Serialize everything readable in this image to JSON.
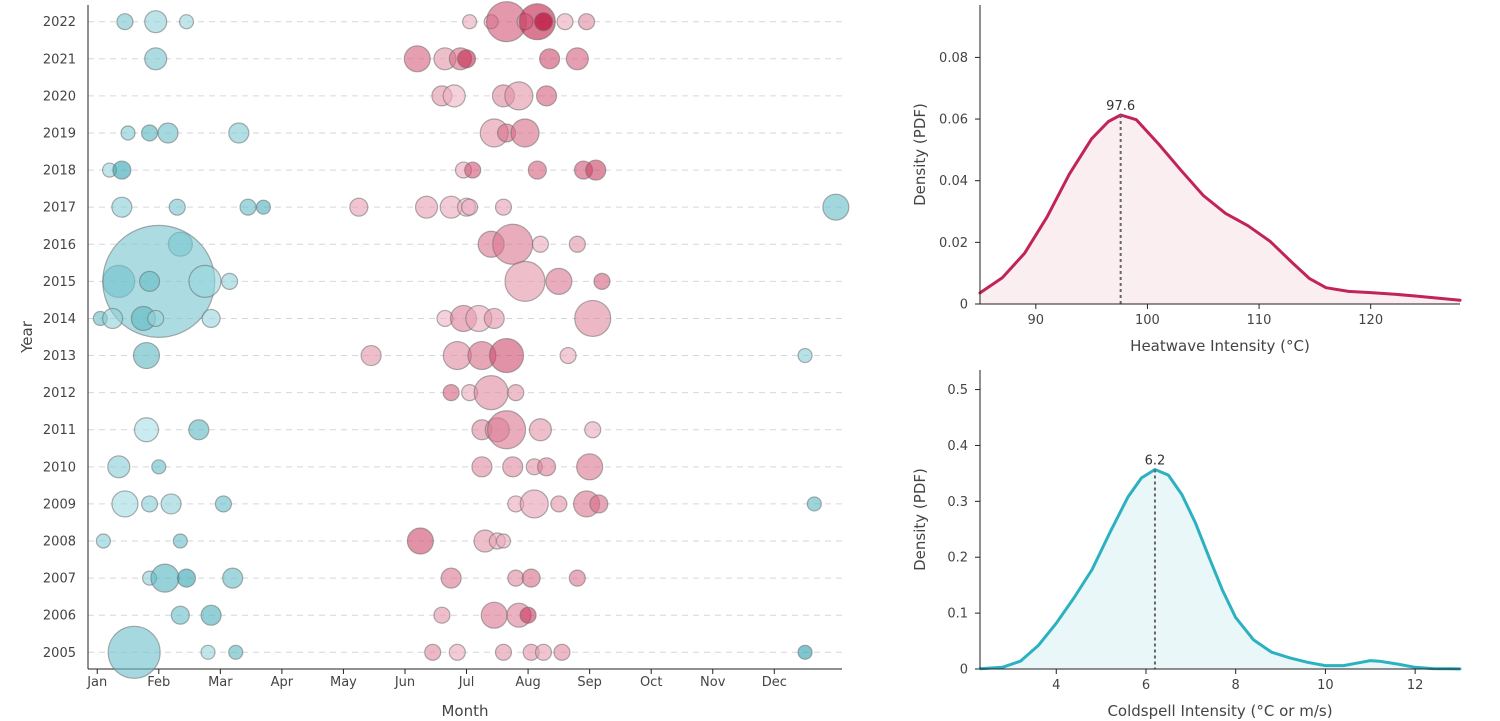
{
  "colors": {
    "heat_min": "#f5d3dd",
    "heat_max": "#b8002f",
    "cold_min": "#c9eff3",
    "cold_max": "#1f9aa8",
    "heat_line": "#c0245a",
    "cold_line": "#2bb1c0",
    "heat_fill": "#fbeef1",
    "cold_fill": "#eaf7f8"
  },
  "chart_data": [
    {
      "type": "scatter",
      "xlabel": "Month",
      "ylabel": "Year",
      "x_ticks": [
        "Jan",
        "Feb",
        "Mar",
        "Apr",
        "May",
        "Jun",
        "Jul",
        "Aug",
        "Sep",
        "Oct",
        "Nov",
        "Dec"
      ],
      "y_ticks": [
        "2005",
        "2006",
        "2007",
        "2008",
        "2009",
        "2010",
        "2011",
        "2012",
        "2013",
        "2014",
        "2015",
        "2016",
        "2017",
        "2018",
        "2019",
        "2020",
        "2021",
        "2022"
      ],
      "xlim": [
        0.85,
        13.1
      ],
      "ylim": [
        2004.55,
        2022.45
      ],
      "grid": "horizontal dashed",
      "series": [
        {
          "kind": "heatwave",
          "points": [
            [
              2022,
              7.05,
              7,
              0.2
            ],
            [
              2022,
              7.4,
              7,
              0.2
            ],
            [
              2022,
              7.65,
              20,
              0.6
            ],
            [
              2022,
              7.95,
              8,
              0.2
            ],
            [
              2022,
              8.15,
              18,
              0.85
            ],
            [
              2022,
              8.25,
              9,
              1.0
            ],
            [
              2022,
              8.6,
              8,
              0.2
            ],
            [
              2022,
              8.95,
              8,
              0.35
            ],
            [
              2021,
              6.2,
              13,
              0.55
            ],
            [
              2021,
              6.65,
              11,
              0.3
            ],
            [
              2021,
              6.9,
              11,
              0.5
            ],
            [
              2021,
              7.0,
              9,
              0.8
            ],
            [
              2021,
              8.35,
              10,
              0.65
            ],
            [
              2021,
              8.8,
              11,
              0.55
            ],
            [
              2020,
              6.6,
              10,
              0.3
            ],
            [
              2020,
              6.8,
              11,
              0.15
            ],
            [
              2020,
              7.6,
              11,
              0.35
            ],
            [
              2020,
              7.85,
              14,
              0.3
            ],
            [
              2020,
              8.3,
              10,
              0.55
            ],
            [
              2019,
              7.45,
              14,
              0.3
            ],
            [
              2019,
              7.65,
              9,
              0.5
            ],
            [
              2019,
              7.95,
              14,
              0.5
            ],
            [
              2018,
              6.95,
              8,
              0.2
            ],
            [
              2018,
              7.1,
              8,
              0.6
            ],
            [
              2018,
              8.15,
              9,
              0.55
            ],
            [
              2018,
              8.9,
              9,
              0.6
            ],
            [
              2018,
              9.1,
              10,
              0.7
            ],
            [
              2017,
              5.25,
              9,
              0.25
            ],
            [
              2017,
              6.35,
              11,
              0.25
            ],
            [
              2017,
              6.75,
              11,
              0.2
            ],
            [
              2017,
              7.0,
              9,
              0.15
            ],
            [
              2017,
              7.05,
              8,
              0.2
            ],
            [
              2017,
              7.6,
              8,
              0.25
            ],
            [
              2016,
              7.4,
              13,
              0.45
            ],
            [
              2016,
              7.75,
              20,
              0.45
            ],
            [
              2016,
              8.2,
              8,
              0.2
            ],
            [
              2016,
              8.8,
              8,
              0.3
            ],
            [
              2015,
              7.95,
              20,
              0.3
            ],
            [
              2015,
              8.5,
              13,
              0.45
            ],
            [
              2015,
              9.2,
              8,
              0.55
            ],
            [
              2014,
              6.65,
              8,
              0.15
            ],
            [
              2014,
              6.95,
              13,
              0.4
            ],
            [
              2014,
              7.2,
              13,
              0.2
            ],
            [
              2014,
              7.45,
              10,
              0.3
            ],
            [
              2014,
              9.05,
              18,
              0.35
            ],
            [
              2013,
              5.45,
              10,
              0.3
            ],
            [
              2013,
              6.85,
              14,
              0.35
            ],
            [
              2013,
              7.25,
              14,
              0.5
            ],
            [
              2013,
              7.65,
              17,
              0.65
            ],
            [
              2013,
              8.65,
              8,
              0.2
            ],
            [
              2012,
              6.75,
              8,
              0.55
            ],
            [
              2012,
              7.05,
              8,
              0.2
            ],
            [
              2012,
              7.4,
              17,
              0.35
            ],
            [
              2012,
              7.8,
              8,
              0.3
            ],
            [
              2011,
              7.25,
              10,
              0.35
            ],
            [
              2011,
              7.5,
              12,
              0.3
            ],
            [
              2011,
              7.65,
              19,
              0.45
            ],
            [
              2011,
              8.2,
              11,
              0.3
            ],
            [
              2011,
              9.05,
              8,
              0.2
            ],
            [
              2010,
              7.25,
              10,
              0.35
            ],
            [
              2010,
              7.75,
              10,
              0.35
            ],
            [
              2010,
              8.1,
              8,
              0.3
            ],
            [
              2010,
              8.3,
              9,
              0.4
            ],
            [
              2010,
              9.0,
              13,
              0.45
            ],
            [
              2009,
              7.8,
              8,
              0.2
            ],
            [
              2009,
              8.1,
              14,
              0.25
            ],
            [
              2009,
              8.5,
              8,
              0.3
            ],
            [
              2009,
              8.95,
              13,
              0.45
            ],
            [
              2009,
              9.15,
              9,
              0.5
            ],
            [
              2008,
              6.25,
              13,
              0.65
            ],
            [
              2008,
              7.3,
              11,
              0.3
            ],
            [
              2008,
              7.5,
              8,
              0.2
            ],
            [
              2008,
              7.6,
              7,
              0.2
            ],
            [
              2007,
              6.75,
              10,
              0.45
            ],
            [
              2007,
              7.8,
              8,
              0.35
            ],
            [
              2007,
              8.05,
              9,
              0.5
            ],
            [
              2007,
              8.8,
              8,
              0.45
            ],
            [
              2006,
              6.6,
              8,
              0.3
            ],
            [
              2006,
              7.45,
              13,
              0.45
            ],
            [
              2006,
              7.85,
              12,
              0.4
            ],
            [
              2006,
              8.0,
              8,
              0.75
            ],
            [
              2005,
              6.45,
              8,
              0.35
            ],
            [
              2005,
              6.85,
              8,
              0.2
            ],
            [
              2005,
              7.6,
              8,
              0.3
            ],
            [
              2005,
              8.05,
              8,
              0.3
            ],
            [
              2005,
              8.25,
              8,
              0.25
            ],
            [
              2005,
              8.55,
              8,
              0.35
            ]
          ]
        },
        {
          "kind": "coldspell",
          "points": [
            [
              2022,
              1.45,
              8,
              0.5
            ],
            [
              2022,
              1.95,
              11,
              0.35
            ],
            [
              2022,
              2.45,
              7,
              0.3
            ],
            [
              2021,
              1.95,
              11,
              0.5
            ],
            [
              2019,
              1.5,
              7,
              0.45
            ],
            [
              2019,
              1.85,
              8,
              0.7
            ],
            [
              2019,
              2.15,
              10,
              0.55
            ],
            [
              2019,
              3.3,
              10,
              0.45
            ],
            [
              2018,
              1.2,
              7,
              0.3
            ],
            [
              2018,
              1.4,
              9,
              0.9
            ],
            [
              2017,
              1.4,
              10,
              0.4
            ],
            [
              2017,
              2.3,
              8,
              0.5
            ],
            [
              2017,
              3.45,
              8,
              0.6
            ],
            [
              2017,
              3.7,
              7,
              0.75
            ],
            [
              2017,
              13.0,
              13,
              0.6
            ],
            [
              2016,
              2.35,
              12,
              0.45
            ],
            [
              2015,
              1.35,
              16,
              0.55
            ],
            [
              2015,
              2.0,
              56,
              0.5
            ],
            [
              2015,
              1.85,
              10,
              0.6
            ],
            [
              2015,
              2.75,
              16,
              0.3
            ],
            [
              2015,
              3.15,
              8,
              0.35
            ],
            [
              2014,
              1.05,
              7,
              0.6
            ],
            [
              2014,
              1.25,
              10,
              0.35
            ],
            [
              2014,
              1.75,
              12,
              0.65
            ],
            [
              2014,
              1.95,
              8,
              0.3
            ],
            [
              2014,
              2.85,
              9,
              0.3
            ],
            [
              2013,
              1.8,
              13,
              0.65
            ],
            [
              2013,
              12.5,
              7,
              0.4
            ],
            [
              2011,
              1.8,
              12,
              0.2
            ],
            [
              2011,
              2.65,
              10,
              0.65
            ],
            [
              2010,
              1.35,
              11,
              0.4
            ],
            [
              2010,
              2.0,
              7,
              0.6
            ],
            [
              2009,
              1.45,
              13,
              0.25
            ],
            [
              2009,
              1.85,
              8,
              0.4
            ],
            [
              2009,
              2.2,
              10,
              0.35
            ],
            [
              2009,
              3.05,
              8,
              0.6
            ],
            [
              2009,
              12.65,
              7,
              0.65
            ],
            [
              2008,
              1.1,
              7,
              0.4
            ],
            [
              2008,
              2.35,
              7,
              0.6
            ],
            [
              2007,
              1.85,
              7,
              0.35
            ],
            [
              2007,
              2.1,
              14,
              0.7
            ],
            [
              2007,
              2.45,
              9,
              0.9
            ],
            [
              2007,
              3.2,
              10,
              0.6
            ],
            [
              2006,
              2.35,
              9,
              0.6
            ],
            [
              2006,
              2.85,
              10,
              0.75
            ],
            [
              2005,
              1.6,
              26,
              0.55
            ],
            [
              2005,
              2.8,
              7,
              0.3
            ],
            [
              2005,
              3.25,
              7,
              0.65
            ],
            [
              2005,
              12.5,
              7,
              0.95
            ]
          ]
        }
      ]
    },
    {
      "type": "area",
      "title": "",
      "xlabel": "Heatwave Intensity (°C)",
      "ylabel": "Density (PDF)",
      "xlim": [
        85,
        128
      ],
      "ylim": [
        0,
        0.097
      ],
      "x_ticks": [
        "90",
        "100",
        "110",
        "120"
      ],
      "y_ticks": [
        "0",
        "0.02",
        "0.04",
        "0.06",
        "0.08"
      ],
      "peak": {
        "x": 97.6,
        "y": 0.0613,
        "label": "97.6"
      },
      "x": [
        85,
        87,
        89,
        91,
        93,
        95,
        96.5,
        97.6,
        99,
        101,
        103,
        105,
        107,
        109,
        111,
        113,
        114.5,
        116,
        118,
        120,
        122,
        124,
        126,
        128
      ],
      "y": [
        0.0036,
        0.0085,
        0.0165,
        0.0282,
        0.0421,
        0.0536,
        0.0592,
        0.0613,
        0.0598,
        0.0519,
        0.0434,
        0.0352,
        0.0294,
        0.0254,
        0.0203,
        0.0133,
        0.0083,
        0.0053,
        0.0041,
        0.0037,
        0.0032,
        0.0026,
        0.0019,
        0.0012
      ]
    },
    {
      "type": "area",
      "title": "",
      "xlabel": "Coldspell Intensity (°C or m/s)",
      "ylabel": "Density (PDF)",
      "xlim": [
        2.3,
        13
      ],
      "ylim": [
        0,
        0.535
      ],
      "x_ticks": [
        "4",
        "6",
        "8",
        "10",
        "12"
      ],
      "y_ticks": [
        "0",
        "0.1",
        "0.2",
        "0.3",
        "0.4",
        "0.5"
      ],
      "peak": {
        "x": 6.2,
        "y": 0.357,
        "label": "6.2"
      },
      "x": [
        2.3,
        2.8,
        3.2,
        3.6,
        4.0,
        4.4,
        4.8,
        5.2,
        5.6,
        5.9,
        6.2,
        6.5,
        6.8,
        7.1,
        7.4,
        7.7,
        8.0,
        8.4,
        8.8,
        9.2,
        9.6,
        10.0,
        10.4,
        10.8,
        11.0,
        11.2,
        11.6,
        12.0,
        12.4,
        12.8,
        13.0
      ],
      "y": [
        0.0005,
        0.003,
        0.014,
        0.042,
        0.082,
        0.128,
        0.178,
        0.245,
        0.308,
        0.342,
        0.357,
        0.347,
        0.312,
        0.262,
        0.201,
        0.142,
        0.092,
        0.052,
        0.03,
        0.02,
        0.012,
        0.006,
        0.006,
        0.012,
        0.015,
        0.014,
        0.009,
        0.003,
        0.0008,
        0.0003,
        0.0002
      ]
    }
  ]
}
